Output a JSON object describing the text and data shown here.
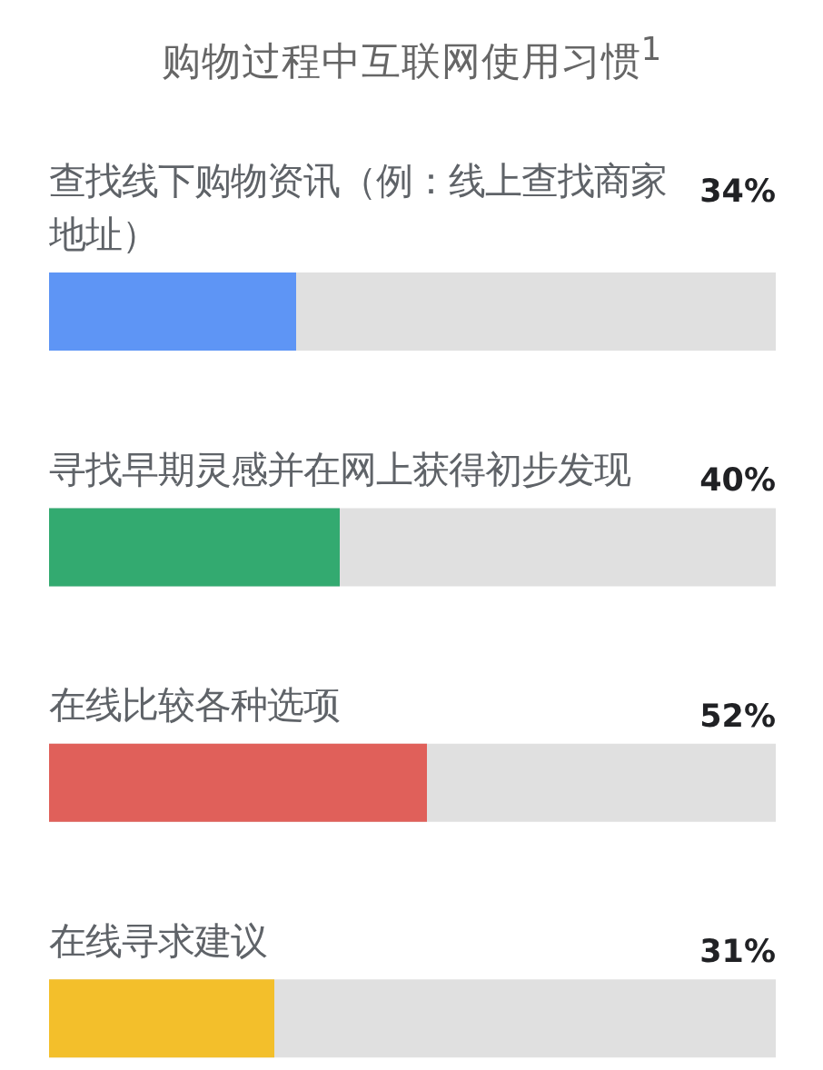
{
  "chart_data": {
    "type": "bar",
    "orientation": "horizontal",
    "title": "购物过程中互联网使用习惯$^{1}$",
    "categories": [
      "查找线下购物资讯（例：线上查找商家地址）",
      "寻找早期灵感并在网上获得初步发现",
      "在线比较各种选项",
      "在线寻求建议"
    ],
    "values": [
      34,
      40,
      52,
      31
    ],
    "colors": [
      "#5e95f5",
      "#33aa70",
      "#e0605a",
      "#f3bf2b"
    ],
    "value_labels": [
      "34%",
      "40%",
      "52%",
      "31%"
    ],
    "xlim": [
      0,
      100
    ],
    "tick_labels": "y"
  }
}
